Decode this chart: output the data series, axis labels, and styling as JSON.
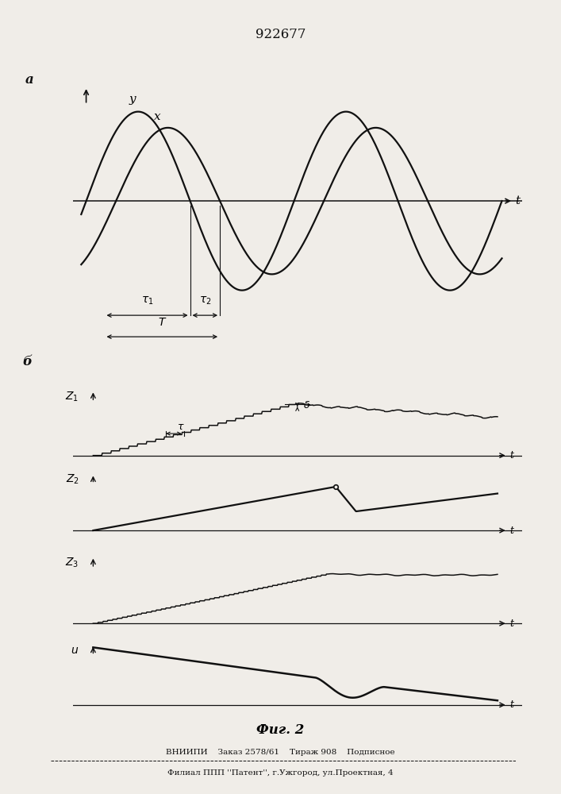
{
  "patent_number": "922677",
  "fig_label": "Фиг. 2",
  "panel_a_label": "а",
  "panel_b_label": "б",
  "footer_line1": "ВНИИПИ    Заказ 2578/61    Тираж 908    Подписное",
  "footer_line2": "Филиал ППП ''Патент'', г.Ужгород, ул.Проектная, 4",
  "bg_color": "#f0ede8",
  "line_color": "#111111"
}
